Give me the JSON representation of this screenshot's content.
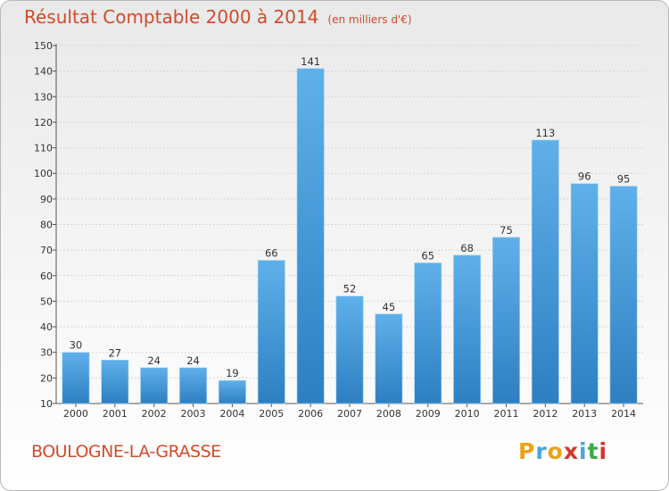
{
  "header": {
    "title": "Résultat Comptable 2000 à 2014",
    "unit": "(en milliers d'€)"
  },
  "footer": {
    "commune": "BOULOGNE-LA-GRASSE",
    "logo": [
      "P",
      "r",
      "o",
      "x",
      "i",
      "t",
      "i"
    ]
  },
  "colors": {
    "title": "#d14b2b",
    "bar_light": "#5fb0ea",
    "bar_dark": "#2d7fc1",
    "logo": [
      "#e8a317",
      "#4aa3df",
      "#e8a317",
      "#d2362f",
      "#4aa3df",
      "#3fa84a",
      "#d2362f"
    ]
  },
  "chart_data": {
    "type": "bar",
    "title": "Résultat Comptable 2000 à 2014",
    "xlabel": "",
    "ylabel": "",
    "categories": [
      "2000",
      "2001",
      "2002",
      "2003",
      "2004",
      "2005",
      "2006",
      "2007",
      "2008",
      "2009",
      "2010",
      "2011",
      "2012",
      "2013",
      "2014"
    ],
    "values": [
      30,
      27,
      24,
      24,
      19,
      66,
      141,
      52,
      45,
      65,
      68,
      75,
      113,
      96,
      95
    ],
    "ylim": [
      10,
      150
    ],
    "yticks": [
      10,
      20,
      30,
      40,
      50,
      60,
      70,
      80,
      90,
      100,
      110,
      120,
      130,
      140,
      150
    ],
    "grid": true,
    "data_labels": true
  }
}
